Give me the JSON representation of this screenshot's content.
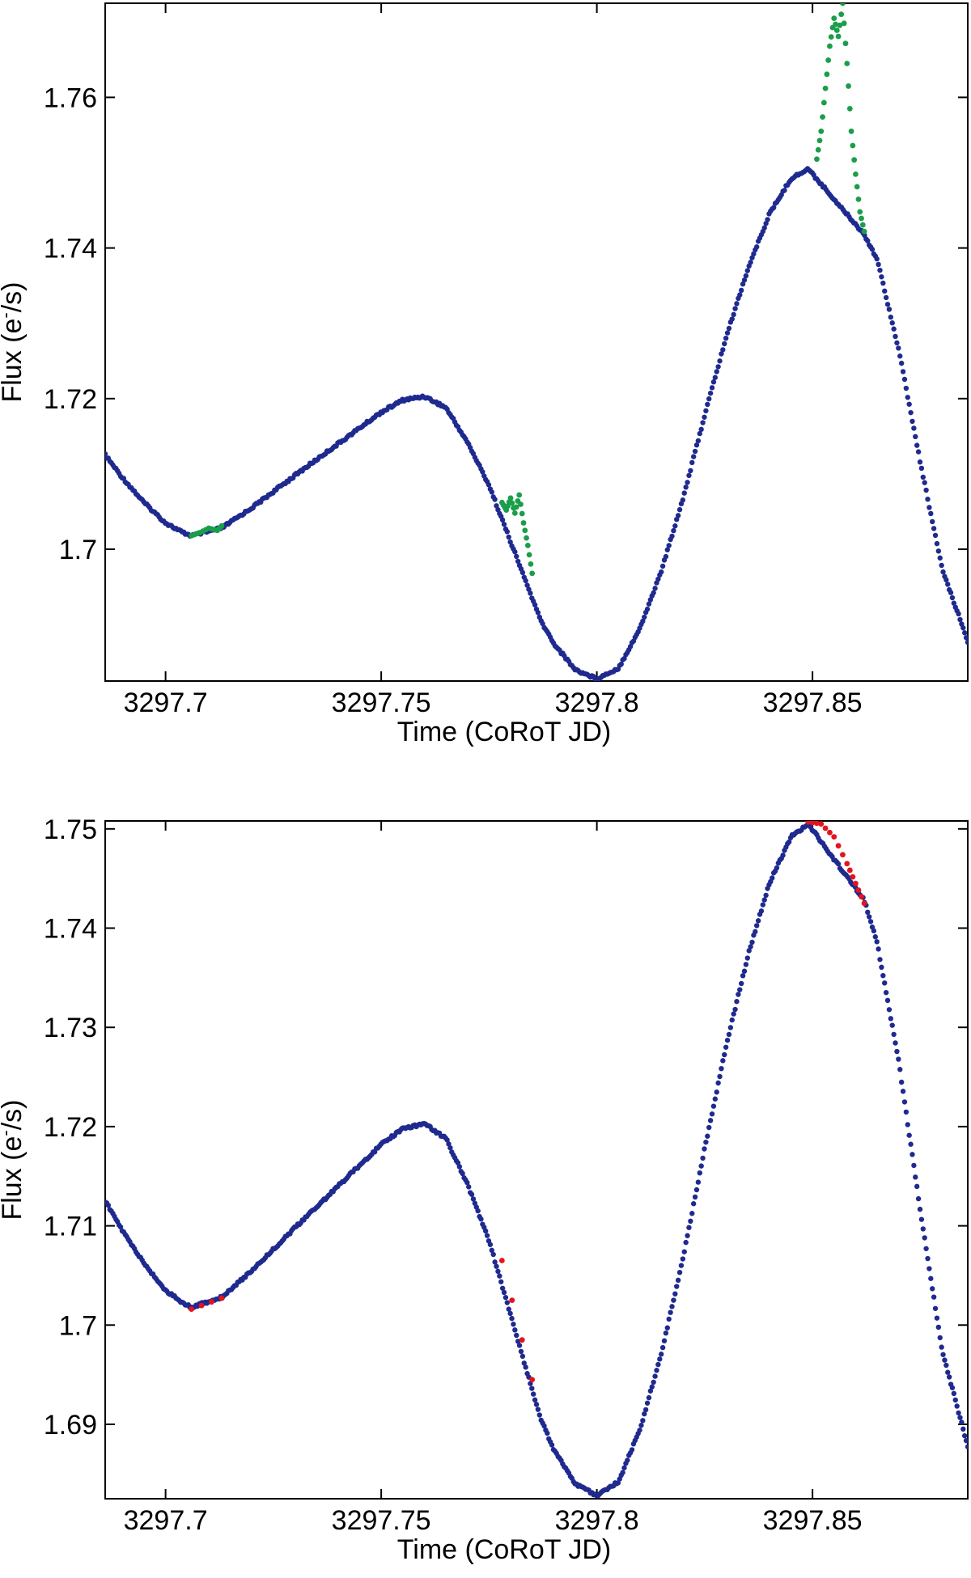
{
  "colors": {
    "main": "#1f2a8f",
    "green": "#1a9e4a",
    "red": "#e3141e"
  },
  "chart_data": [
    {
      "type": "scatter",
      "title": "",
      "xlabel": "Time (CoRoT JD)",
      "ylabel_text": "Flux (e",
      "ylabel_sup": "-",
      "ylabel_tail": "/s)",
      "xlim": [
        3297.686,
        3297.886
      ],
      "ylim": [
        1.6825,
        1.7725
      ],
      "xticks": [
        3297.7,
        3297.75,
        3297.8,
        3297.85
      ],
      "xtick_labels": [
        "3297.7",
        "3297.75",
        "3297.8",
        "3297.85"
      ],
      "yticks": [
        1.7,
        1.72,
        1.74,
        1.76
      ],
      "ytick_labels": [
        "1.7",
        "1.72",
        "1.74",
        "1.76"
      ],
      "grid": false,
      "series": [
        {
          "color_key": "main",
          "description": "light curve",
          "points": [
            [
              3297.686,
              1.7125
            ],
            [
              3297.69,
              1.7095
            ],
            [
              3297.695,
              1.7062
            ],
            [
              3297.7,
              1.7035
            ],
            [
              3297.704,
              1.7022
            ],
            [
              3297.706,
              1.7018
            ],
            [
              3297.713,
              1.7028
            ],
            [
              3297.72,
              1.7055
            ],
            [
              3297.73,
              1.7098
            ],
            [
              3297.74,
              1.714
            ],
            [
              3297.75,
              1.7182
            ],
            [
              3297.755,
              1.7198
            ],
            [
              3297.76,
              1.7203
            ],
            [
              3297.765,
              1.7188
            ],
            [
              3297.77,
              1.7142
            ],
            [
              3297.775,
              1.7085
            ],
            [
              3297.787,
              1.6905
            ],
            [
              3297.79,
              1.6875
            ],
            [
              3297.795,
              1.684
            ],
            [
              3297.8,
              1.6828
            ],
            [
              3297.805,
              1.6842
            ],
            [
              3297.81,
              1.6895
            ],
            [
              3297.815,
              1.6972
            ],
            [
              3297.82,
              1.7068
            ],
            [
              3297.825,
              1.7178
            ],
            [
              3297.83,
              1.7282
            ],
            [
              3297.835,
              1.7372
            ],
            [
              3297.84,
              1.7445
            ],
            [
              3297.845,
              1.7492
            ],
            [
              3297.849,
              1.7505
            ],
            [
              3297.862,
              1.7418
            ],
            [
              3297.865,
              1.7385
            ],
            [
              3297.87,
              1.7265
            ],
            [
              3297.875,
              1.7115
            ],
            [
              3297.88,
              1.6975
            ],
            [
              3297.886,
              1.6878
            ]
          ]
        },
        {
          "color_key": "green",
          "description": "green points",
          "points": [
            [
              3297.706,
              1.7018
            ],
            [
              3297.708,
              1.7022
            ],
            [
              3297.71,
              1.7028
            ],
            [
              3297.712,
              1.7025
            ],
            [
              3297.713,
              1.7031
            ],
            [
              3297.778,
              1.7062
            ],
            [
              3297.779,
              1.7052
            ],
            [
              3297.78,
              1.7068
            ],
            [
              3297.781,
              1.7048
            ],
            [
              3297.782,
              1.7072
            ],
            [
              3297.783,
              1.7035
            ],
            [
              3297.784,
              1.7005
            ],
            [
              3297.785,
              1.6968
            ],
            [
              3297.851,
              1.7518
            ],
            [
              3297.852,
              1.7555
            ],
            [
              3297.853,
              1.7612
            ],
            [
              3297.854,
              1.7668
            ],
            [
              3297.855,
              1.7705
            ],
            [
              3297.856,
              1.7681
            ],
            [
              3297.857,
              1.7725
            ],
            [
              3297.858,
              1.7645
            ],
            [
              3297.859,
              1.7555
            ],
            [
              3297.86,
              1.7498
            ],
            [
              3297.861,
              1.7448
            ],
            [
              3297.862,
              1.7422
            ]
          ]
        }
      ]
    },
    {
      "type": "scatter",
      "title": "",
      "xlabel": "Time (CoRoT JD)",
      "ylabel_text": "Flux (e",
      "ylabel_sup": "-",
      "ylabel_tail": "/s)",
      "xlim": [
        3297.686,
        3297.886
      ],
      "ylim": [
        1.6825,
        1.7508
      ],
      "xticks": [
        3297.7,
        3297.75,
        3297.8,
        3297.85
      ],
      "xtick_labels": [
        "3297.7",
        "3297.75",
        "3297.8",
        "3297.85"
      ],
      "yticks": [
        1.69,
        1.7,
        1.71,
        1.72,
        1.73,
        1.74,
        1.75
      ],
      "ytick_labels": [
        "1.69",
        "1.7",
        "1.71",
        "1.72",
        "1.73",
        "1.74",
        "1.75"
      ],
      "grid": false,
      "series": [
        {
          "color_key": "main",
          "description": "light curve",
          "points": [
            [
              3297.686,
              1.7125
            ],
            [
              3297.69,
              1.7095
            ],
            [
              3297.695,
              1.7062
            ],
            [
              3297.7,
              1.7035
            ],
            [
              3297.704,
              1.7022
            ],
            [
              3297.706,
              1.7018
            ],
            [
              3297.713,
              1.7028
            ],
            [
              3297.72,
              1.7055
            ],
            [
              3297.73,
              1.7098
            ],
            [
              3297.74,
              1.714
            ],
            [
              3297.75,
              1.7182
            ],
            [
              3297.755,
              1.7198
            ],
            [
              3297.76,
              1.7203
            ],
            [
              3297.765,
              1.7188
            ],
            [
              3297.77,
              1.7142
            ],
            [
              3297.775,
              1.7085
            ],
            [
              3297.787,
              1.6905
            ],
            [
              3297.79,
              1.6875
            ],
            [
              3297.795,
              1.684
            ],
            [
              3297.8,
              1.6828
            ],
            [
              3297.805,
              1.6842
            ],
            [
              3297.81,
              1.6895
            ],
            [
              3297.815,
              1.6972
            ],
            [
              3297.82,
              1.7068
            ],
            [
              3297.825,
              1.7178
            ],
            [
              3297.83,
              1.7282
            ],
            [
              3297.835,
              1.7372
            ],
            [
              3297.84,
              1.7445
            ],
            [
              3297.845,
              1.7492
            ],
            [
              3297.849,
              1.7505
            ],
            [
              3297.862,
              1.7428
            ],
            [
              3297.865,
              1.7385
            ],
            [
              3297.87,
              1.7265
            ],
            [
              3297.875,
              1.7115
            ],
            [
              3297.88,
              1.6975
            ],
            [
              3297.886,
              1.6878
            ]
          ]
        },
        {
          "color_key": "red",
          "description": "red points",
          "points": [
            [
              3297.706,
              1.7016
            ],
            [
              3297.713,
              1.7027
            ],
            [
              3297.778,
              1.7065
            ],
            [
              3297.785,
              1.6945
            ],
            [
              3297.849,
              1.7507
            ],
            [
              3297.852,
              1.7505
            ],
            [
              3297.855,
              1.7492
            ],
            [
              3297.858,
              1.7465
            ],
            [
              3297.86,
              1.7445
            ],
            [
              3297.862,
              1.7425
            ]
          ]
        }
      ]
    }
  ]
}
